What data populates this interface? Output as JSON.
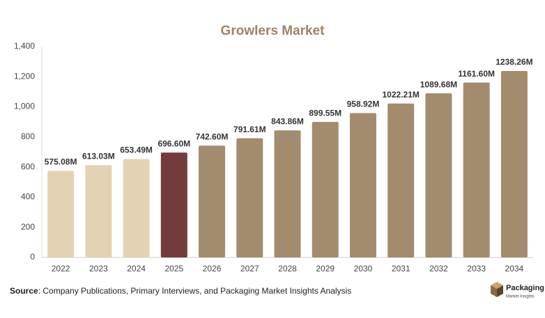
{
  "chart_data": {
    "type": "bar",
    "title": "Growlers Market",
    "categories": [
      "2022",
      "2023",
      "2024",
      "2025",
      "2026",
      "2027",
      "2028",
      "2029",
      "2030",
      "2031",
      "2032",
      "2033",
      "2034"
    ],
    "values": [
      575.08,
      613.03,
      653.49,
      696.6,
      742.6,
      791.61,
      843.86,
      899.55,
      958.92,
      1022.21,
      1089.68,
      1161.6,
      1238.26
    ],
    "value_labels": [
      "575.08M",
      "613.03M",
      "653.49M",
      "696.60M",
      "742.60M",
      "791.61M",
      "843.86M",
      "899.55M",
      "958.92M",
      "1022.21M",
      "1089.68M",
      "1161.60M",
      "1238.26M"
    ],
    "colors": [
      "#e3d3b4",
      "#e3d3b4",
      "#e3d3b4",
      "#733b3b",
      "#a38b6d",
      "#a38b6d",
      "#a38b6d",
      "#a38b6d",
      "#a38b6d",
      "#a38b6d",
      "#a38b6d",
      "#a38b6d",
      "#a38b6d"
    ],
    "ylim": [
      0,
      1400
    ],
    "yticks": [
      0,
      200,
      400,
      600,
      800,
      {
        "value": 1000,
        "label": "1,000"
      },
      {
        "value": 1200,
        "label": "1,200"
      },
      {
        "value": 1400,
        "label": "1,400"
      }
    ],
    "grid": false
  },
  "footer": {
    "source_label": "Source",
    "source_text": ": Company Publications, Primary Interviews, and Packaging Market Insights Analysis"
  },
  "logo": {
    "name": "Packaging",
    "tagline": "Market Insights"
  }
}
